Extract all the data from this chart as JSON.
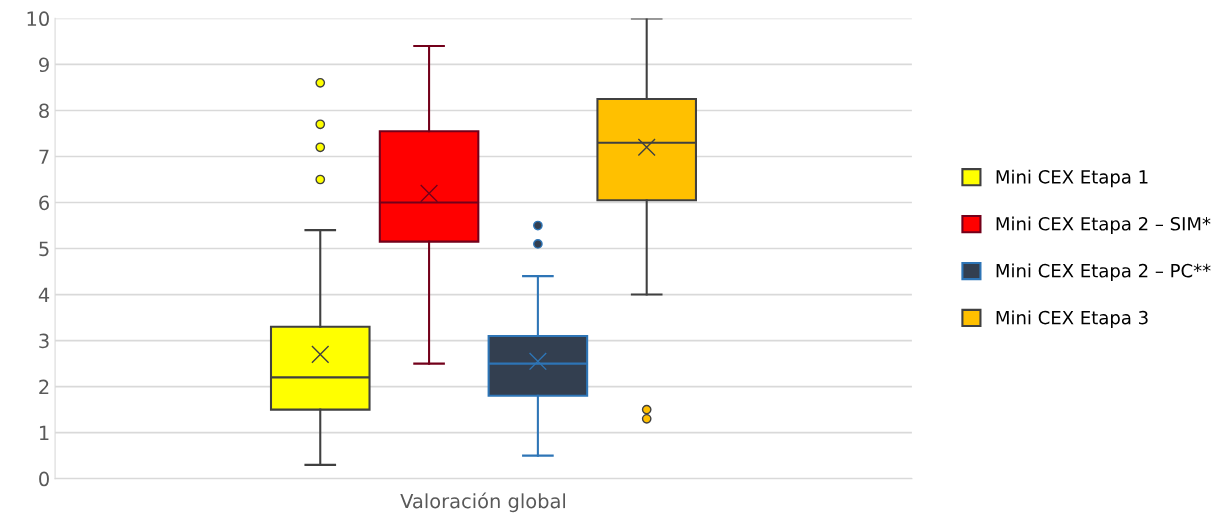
{
  "chart_data": {
    "type": "box",
    "xlabel": null,
    "categories": [
      "Valoración global"
    ],
    "ylim": [
      0,
      10
    ],
    "yticks": [
      0,
      1,
      2,
      3,
      4,
      5,
      6,
      7,
      8,
      9,
      10
    ],
    "grid": "y",
    "legend": "right",
    "series": [
      {
        "name": "Mini CEX Etapa 1",
        "color": "#ffff00",
        "boxes": [
          {
            "low": 0.3,
            "q1": 1.5,
            "median": 2.2,
            "q3": 3.3,
            "high": 5.4,
            "mean": 2.7,
            "outliers": [
              8.6,
              7.7,
              7.2,
              6.5
            ]
          }
        ]
      },
      {
        "name": "Mini CEX Etapa 2 – SIM*",
        "color": "#ff0000",
        "boxes": [
          {
            "low": 2.5,
            "q1": 5.15,
            "median": 6.0,
            "q3": 7.55,
            "high": 9.4,
            "mean": 6.2
          }
        ]
      },
      {
        "name": "Mini CEX Etapa 2 – PC**",
        "color": "#333f50",
        "boxes": [
          {
            "low": 0.5,
            "q1": 1.8,
            "median": 2.5,
            "q3": 3.1,
            "high": 4.4,
            "mean": 2.55,
            "outliers": [
              5.5,
              5.1
            ]
          }
        ]
      },
      {
        "name": "Mini CEX Etapa 3",
        "color": "#ffc000",
        "boxes": [
          {
            "low": 4.0,
            "q1": 6.05,
            "median": 7.3,
            "q3": 8.25,
            "high": 10,
            "mean": 7.2,
            "outliers": [
              1.5,
              1.3
            ]
          }
        ]
      }
    ]
  }
}
